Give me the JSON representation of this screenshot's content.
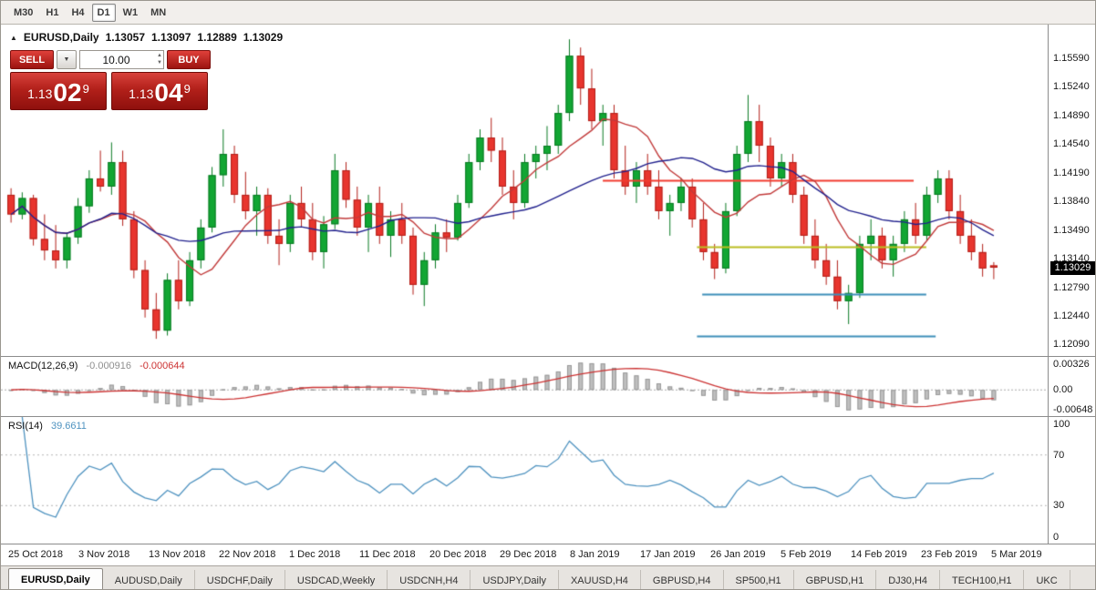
{
  "toolbar": {
    "timeframes": [
      {
        "label": "M30",
        "active": false
      },
      {
        "label": "H1",
        "active": false
      },
      {
        "label": "H4",
        "active": false
      },
      {
        "label": "D1",
        "active": true
      },
      {
        "label": "W1",
        "active": false
      },
      {
        "label": "MN",
        "active": false
      }
    ]
  },
  "icons": {
    "collapse": "▲",
    "dropdown": "▼",
    "spin_up": "▲",
    "spin_down": "▼"
  },
  "chart": {
    "title": {
      "symbol": "EURUSD,Daily",
      "open": "1.13057",
      "high": "1.13097",
      "low": "1.12889",
      "close": "1.13029"
    },
    "price_tag": {
      "label": "1.13029",
      "value": 1.13029
    },
    "price_axis": [
      {
        "label": "1.15590",
        "value": 1.1559
      },
      {
        "label": "1.15240",
        "value": 1.1524
      },
      {
        "label": "1.14890",
        "value": 1.1489
      },
      {
        "label": "1.14540",
        "value": 1.1454
      },
      {
        "label": "1.14190",
        "value": 1.1419
      },
      {
        "label": "1.13840",
        "value": 1.1384
      },
      {
        "label": "1.13490",
        "value": 1.1349
      },
      {
        "label": "1.13140",
        "value": 1.1314
      },
      {
        "label": "1.12790",
        "value": 1.1279
      },
      {
        "label": "1.12440",
        "value": 1.1244
      },
      {
        "label": "1.12090",
        "value": 1.1209
      }
    ],
    "time_axis": [
      "25 Oct 2018",
      "3 Nov 2018",
      "13 Nov 2018",
      "22 Nov 2018",
      "1 Dec 2018",
      "11 Dec 2018",
      "20 Dec 2018",
      "29 Dec 2018",
      "8 Jan 2019",
      "17 Jan 2019",
      "26 Jan 2019",
      "5 Feb 2019",
      "14 Feb 2019",
      "23 Feb 2019",
      "5 Mar 2019"
    ]
  },
  "one_click": {
    "sell_label": "SELL",
    "buy_label": "BUY",
    "volume": "10.00",
    "bid": {
      "prefix": "1.13",
      "big": "02",
      "sup": "9"
    },
    "ask": {
      "prefix": "1.13",
      "big": "04",
      "sup": "9"
    }
  },
  "macd": {
    "label": "MACD(12,26,9)",
    "value_main": "-0.000916",
    "value_signal": "-0.000644",
    "axis": {
      "top": "0.00326",
      "zero": "0.00",
      "bottom": "-0.00648"
    },
    "params": {
      "fast": 12,
      "slow": 26,
      "signal": 9
    },
    "colors": {
      "histogram": "#bfbfbf",
      "histogram_border": "#9a9a9a",
      "signal": "#cc3333"
    }
  },
  "rsi": {
    "label": "RSI(14)",
    "value": "39.6611",
    "period": 14,
    "color": "#4f93c0",
    "levels": [
      {
        "label": "100",
        "value": 100,
        "dotted": false
      },
      {
        "label": "70",
        "value": 70,
        "dotted": true
      },
      {
        "label": "30",
        "value": 30,
        "dotted": true
      },
      {
        "label": "0",
        "value": 0,
        "dotted": false
      }
    ]
  },
  "tabs": {
    "items": [
      {
        "label": "EURUSD,Daily",
        "active": true
      },
      {
        "label": "AUDUSD,Daily",
        "active": false
      },
      {
        "label": "USDCHF,Daily",
        "active": false
      },
      {
        "label": "USDCAD,Weekly",
        "active": false
      },
      {
        "label": "USDCNH,H4",
        "active": false
      },
      {
        "label": "USDJPY,Daily",
        "active": false
      },
      {
        "label": "XAUUSD,H4",
        "active": false
      },
      {
        "label": "GBPUSD,H4",
        "active": false
      },
      {
        "label": "SP500,H1",
        "active": false
      },
      {
        "label": "GBPUSD,H1",
        "active": false
      },
      {
        "label": "DJ30,H4",
        "active": false
      },
      {
        "label": "TECH100,H1",
        "active": false
      },
      {
        "label": "UKC",
        "active": false
      }
    ]
  },
  "chart_data": {
    "type": "candlestick",
    "symbol": "EURUSD",
    "timeframe": "Daily",
    "title": "EURUSD,Daily",
    "price_top": 1.16,
    "price_bottom": 1.1195,
    "colors": {
      "up": "#12a633",
      "up_border": "#0a7a24",
      "down": "#e8352e",
      "down_border": "#b3201a"
    },
    "moving_averages": [
      {
        "name": "ma-fast",
        "period": 8,
        "color": "#c23b3b"
      },
      {
        "name": "ma-slow",
        "period": 21,
        "color": "#22228e"
      }
    ],
    "hlines": [
      {
        "name": "resistance-red",
        "price": 1.141,
        "x1": 0.575,
        "x2": 0.872,
        "color": "#f23b2e",
        "width": 2
      },
      {
        "name": "pivot-yellow",
        "price": 1.1328,
        "x1": 0.665,
        "x2": 0.884,
        "color": "#bcbd22",
        "width": 2
      },
      {
        "name": "support-blue-upper",
        "price": 1.1271,
        "x1": 0.67,
        "x2": 0.884,
        "color": "#3d8eb9",
        "width": 2
      },
      {
        "name": "support-blue-lower",
        "price": 1.122,
        "x1": 0.665,
        "x2": 0.893,
        "color": "#3d8eb9",
        "width": 2
      }
    ],
    "candles": [
      [
        1.1392,
        1.14,
        1.1358,
        1.1368
      ],
      [
        1.1368,
        1.1395,
        1.1362,
        1.1388
      ],
      [
        1.1388,
        1.1392,
        1.133,
        1.1338
      ],
      [
        1.1338,
        1.1368,
        1.1312,
        1.1324
      ],
      [
        1.1324,
        1.1355,
        1.1302,
        1.1312
      ],
      [
        1.1312,
        1.1346,
        1.1302,
        1.134
      ],
      [
        1.134,
        1.1388,
        1.1332,
        1.1378
      ],
      [
        1.1378,
        1.1422,
        1.137,
        1.1412
      ],
      [
        1.1412,
        1.1446,
        1.1396,
        1.1402
      ],
      [
        1.1402,
        1.1456,
        1.1392,
        1.1432
      ],
      [
        1.1432,
        1.1446,
        1.1354,
        1.1362
      ],
      [
        1.1362,
        1.1372,
        1.129,
        1.13
      ],
      [
        1.13,
        1.1312,
        1.1242,
        1.1252
      ],
      [
        1.1252,
        1.1272,
        1.1216,
        1.1226
      ],
      [
        1.1226,
        1.1296,
        1.122,
        1.1288
      ],
      [
        1.1288,
        1.1312,
        1.1252,
        1.1262
      ],
      [
        1.1262,
        1.1322,
        1.1256,
        1.1312
      ],
      [
        1.1312,
        1.1362,
        1.1302,
        1.1352
      ],
      [
        1.1352,
        1.1426,
        1.1346,
        1.1416
      ],
      [
        1.1416,
        1.1472,
        1.1402,
        1.1442
      ],
      [
        1.1442,
        1.1452,
        1.1382,
        1.1392
      ],
      [
        1.1392,
        1.142,
        1.1362,
        1.1372
      ],
      [
        1.1372,
        1.1402,
        1.1342,
        1.1392
      ],
      [
        1.1392,
        1.14,
        1.1332,
        1.1342
      ],
      [
        1.1342,
        1.1362,
        1.1306,
        1.1332
      ],
      [
        1.1332,
        1.1392,
        1.1322,
        1.1382
      ],
      [
        1.1382,
        1.1402,
        1.1352,
        1.1362
      ],
      [
        1.1362,
        1.1382,
        1.1312,
        1.1322
      ],
      [
        1.1322,
        1.1366,
        1.1302,
        1.1356
      ],
      [
        1.1356,
        1.1442,
        1.135,
        1.1422
      ],
      [
        1.1422,
        1.1432,
        1.1376,
        1.1386
      ],
      [
        1.1386,
        1.1402,
        1.1342,
        1.1352
      ],
      [
        1.1352,
        1.1392,
        1.1322,
        1.1382
      ],
      [
        1.1382,
        1.1402,
        1.1332,
        1.1342
      ],
      [
        1.1342,
        1.1372,
        1.1316,
        1.1362
      ],
      [
        1.1362,
        1.1382,
        1.1332,
        1.1342
      ],
      [
        1.1342,
        1.1352,
        1.127,
        1.1282
      ],
      [
        1.1282,
        1.1322,
        1.1256,
        1.1312
      ],
      [
        1.1312,
        1.1356,
        1.1302,
        1.1346
      ],
      [
        1.1346,
        1.1362,
        1.1322,
        1.134
      ],
      [
        1.134,
        1.1392,
        1.1336,
        1.1382
      ],
      [
        1.1382,
        1.1442,
        1.1376,
        1.1432
      ],
      [
        1.1432,
        1.1472,
        1.1422,
        1.1462
      ],
      [
        1.1462,
        1.1486,
        1.1432,
        1.1446
      ],
      [
        1.1446,
        1.1462,
        1.1392,
        1.1402
      ],
      [
        1.1402,
        1.1422,
        1.1362,
        1.1382
      ],
      [
        1.1382,
        1.1442,
        1.1376,
        1.1432
      ],
      [
        1.1432,
        1.1452,
        1.1412,
        1.1442
      ],
      [
        1.1442,
        1.1476,
        1.1422,
        1.1452
      ],
      [
        1.1452,
        1.1502,
        1.1442,
        1.1492
      ],
      [
        1.1492,
        1.1582,
        1.1482,
        1.1562
      ],
      [
        1.1562,
        1.1572,
        1.1502,
        1.1522
      ],
      [
        1.1522,
        1.1546,
        1.1472,
        1.1482
      ],
      [
        1.1482,
        1.1502,
        1.1452,
        1.1492
      ],
      [
        1.1492,
        1.1502,
        1.1412,
        1.1422
      ],
      [
        1.1422,
        1.1452,
        1.1392,
        1.1402
      ],
      [
        1.1402,
        1.1432,
        1.1382,
        1.1422
      ],
      [
        1.1422,
        1.1442,
        1.1392,
        1.1402
      ],
      [
        1.1402,
        1.1422,
        1.1362,
        1.1372
      ],
      [
        1.1372,
        1.1392,
        1.1342,
        1.1382
      ],
      [
        1.1382,
        1.1412,
        1.1372,
        1.1402
      ],
      [
        1.1402,
        1.1412,
        1.1352,
        1.1362
      ],
      [
        1.1362,
        1.1382,
        1.1312,
        1.1322
      ],
      [
        1.1322,
        1.1332,
        1.1289,
        1.1302
      ],
      [
        1.1302,
        1.1382,
        1.1296,
        1.1372
      ],
      [
        1.1372,
        1.1452,
        1.1366,
        1.1442
      ],
      [
        1.1442,
        1.1514,
        1.1432,
        1.1482
      ],
      [
        1.1482,
        1.1502,
        1.1432,
        1.1452
      ],
      [
        1.1452,
        1.1462,
        1.1402,
        1.1412
      ],
      [
        1.1412,
        1.1442,
        1.1402,
        1.1432
      ],
      [
        1.1432,
        1.1442,
        1.1382,
        1.1392
      ],
      [
        1.1392,
        1.1402,
        1.1332,
        1.1342
      ],
      [
        1.1342,
        1.1362,
        1.1302,
        1.1312
      ],
      [
        1.1312,
        1.1332,
        1.1282,
        1.1292
      ],
      [
        1.1292,
        1.1312,
        1.1252,
        1.1262
      ],
      [
        1.1262,
        1.1282,
        1.1234,
        1.1272
      ],
      [
        1.1272,
        1.1342,
        1.1266,
        1.1332
      ],
      [
        1.1332,
        1.1362,
        1.1312,
        1.1342
      ],
      [
        1.1342,
        1.1352,
        1.1302,
        1.1312
      ],
      [
        1.1312,
        1.1342,
        1.1292,
        1.1332
      ],
      [
        1.1332,
        1.1372,
        1.1322,
        1.1362
      ],
      [
        1.1362,
        1.1382,
        1.1332,
        1.1342
      ],
      [
        1.1342,
        1.1402,
        1.1336,
        1.1392
      ],
      [
        1.1392,
        1.1422,
        1.1382,
        1.1412
      ],
      [
        1.1412,
        1.1422,
        1.1362,
        1.1372
      ],
      [
        1.1372,
        1.1392,
        1.1332,
        1.1342
      ],
      [
        1.1342,
        1.1362,
        1.1312,
        1.1322
      ],
      [
        1.1322,
        1.1332,
        1.1292,
        1.1302
      ],
      [
        1.13057,
        1.13097,
        1.12889,
        1.13029
      ]
    ]
  }
}
